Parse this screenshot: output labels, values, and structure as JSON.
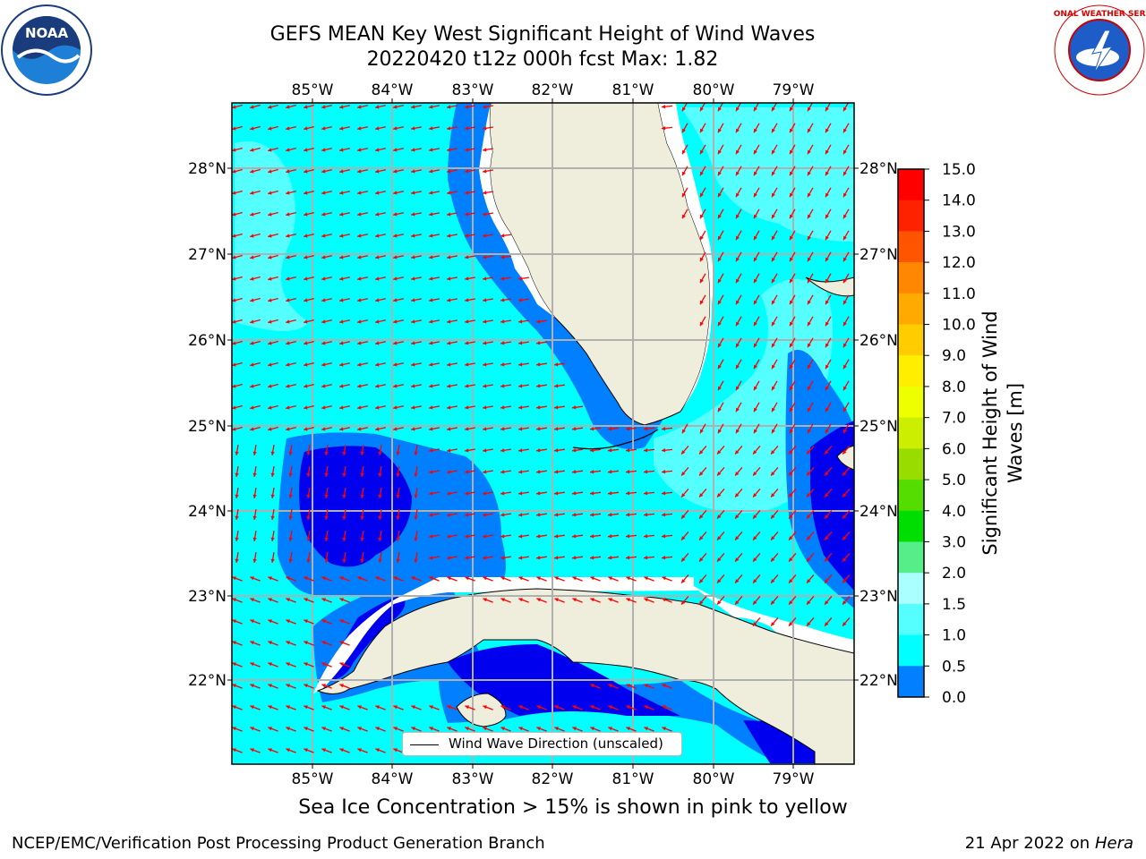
{
  "title": {
    "line1": "GEFS MEAN Key West Significant Height of Wind Waves",
    "line2": "20220420 t12z 000h fcst   Max: 1.82"
  },
  "map": {
    "lon_labels": [
      "85°W",
      "84°W",
      "83°W",
      "82°W",
      "81°W",
      "80°W",
      "79°W"
    ],
    "lat_labels": [
      "28°N",
      "27°N",
      "26°N",
      "25°N",
      "24°N",
      "23°N",
      "22°N"
    ],
    "legend_label": "Wind Wave Direction (unscaled)",
    "colors": {
      "land": "#efeddc",
      "ocean_light": "#00ffff",
      "ocean_pale": "#55ffff",
      "ocean_mid": "#0080ff",
      "ocean_deep": "#0000ee",
      "arrow": "#ff0000",
      "grid": "#b0b0b0"
    }
  },
  "colorbar": {
    "title_line1": "Significant Height of Wind",
    "title_line2": "Waves [m]",
    "ticks": [
      "15.0",
      "14.0",
      "13.0",
      "12.0",
      "11.0",
      "10.0",
      "9.0",
      "8.0",
      "7.0",
      "6.0",
      "5.0",
      "4.0",
      "3.0",
      "2.0",
      "1.5",
      "1.0",
      "0.5",
      "0.0"
    ],
    "colors": [
      "#ff0000",
      "#ff2200",
      "#ff5500",
      "#ff8800",
      "#ffaa00",
      "#ffcc00",
      "#ffee00",
      "#eeff00",
      "#ccee00",
      "#99dd00",
      "#55dd00",
      "#00dd00",
      "#55ee88",
      "#aaffff",
      "#55ffff",
      "#00ffff",
      "#0080ff",
      "#0000ee"
    ]
  },
  "footer": {
    "note": "Sea Ice Concentration > 15% is shown in pink to yellow",
    "left": "NCEP/EMC/Verification Post Processing Product Generation Branch",
    "right_date": "21 Apr 2022 on ",
    "right_host": "Hera"
  },
  "logos": {
    "noaa_text": "NOAA",
    "nws_text": "NATIONAL WEATHER SERVICE"
  }
}
